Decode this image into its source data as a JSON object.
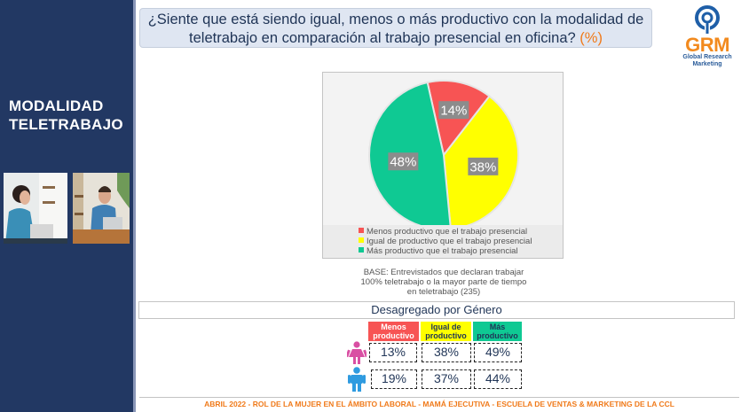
{
  "sidebar": {
    "title_line1": "MODALIDAD",
    "title_line2": "TELETRABAJO",
    "photos": [
      "woman-working-laptop-photo",
      "man-working-laptop-photo"
    ]
  },
  "question": {
    "text": "¿Siente que está siendo igual, menos o más productivo con la modalidad de teletrabajo en comparación al trabajo presencial en oficina?",
    "unit": "(%)"
  },
  "logo": {
    "name": "GRM",
    "subtitle_line1": "Global Research",
    "subtitle_line2": "Marketing"
  },
  "chart_data": {
    "type": "pie",
    "title": "¿Siente que está siendo igual, menos o más productivo con la modalidad de teletrabajo en comparación al trabajo presencial en oficina? (%)",
    "categories": [
      "Menos productivo que el trabajo presencial",
      "Igual de productivo que el trabajo presencial",
      "Más productivo que el trabajo presencial"
    ],
    "values": [
      14,
      38,
      48
    ],
    "labels": [
      "14%",
      "38%",
      "48%"
    ],
    "colors": [
      "#f75454",
      "#ffff00",
      "#0fc993"
    ],
    "legend_position": "bottom"
  },
  "base_note": {
    "line1": "BASE:  Entrevistados que declaran trabajar",
    "line2": "100% teletrabajo o la mayor parte de tiempo",
    "line3": "en teletrabajo (235)"
  },
  "gender": {
    "title": "Desagregado por Género",
    "columns": [
      {
        "line1": "Menos",
        "line2": "productivo",
        "color": "#f75454",
        "text_color": "#ffffff"
      },
      {
        "line1": "Igual de",
        "line2": "productivo",
        "color": "#ffff00",
        "text_color": "#1f3456"
      },
      {
        "line1": "Más",
        "line2": "productivo",
        "color": "#0fc993",
        "text_color": "#1f3456"
      }
    ],
    "rows": [
      {
        "icon": "female-icon",
        "color": "#d94fa3",
        "values": [
          "13%",
          "38%",
          "49%"
        ]
      },
      {
        "icon": "male-icon",
        "color": "#2f9be0",
        "values": [
          "19%",
          "37%",
          "44%"
        ]
      }
    ]
  },
  "footer": {
    "text": "ABRIL  2022  - ROL DE LA MUJER EN EL ÁMBITO LABORAL  - MAMÁ  EJECUTIVA - ESCUELA DE VENTAS & MARKETING DE LA CCL"
  }
}
